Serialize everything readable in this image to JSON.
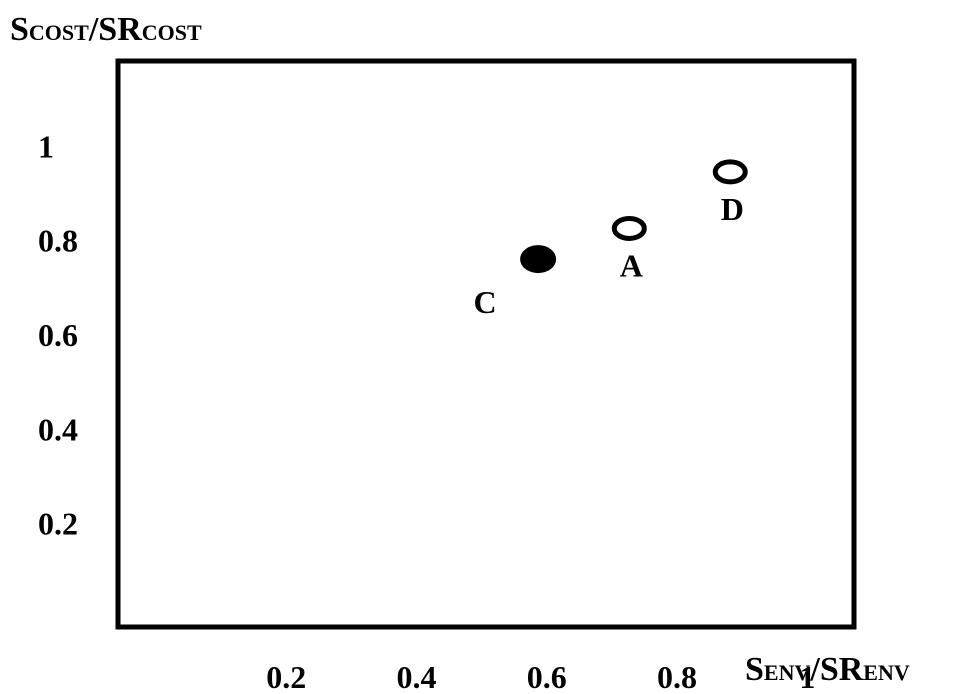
{
  "chart_data": {
    "type": "scatter",
    "title": "",
    "ylabel": {
      "main": "S",
      "sub": "COST",
      "sep": "/SR",
      "sub2": "COST"
    },
    "xlabel": {
      "main": "S",
      "sub": "ENV",
      "sep": "/SR",
      "sub2": "ENV"
    },
    "xlim": [
      0,
      1.13
    ],
    "ylim": [
      0,
      1.2
    ],
    "xticks": [
      0.2,
      0.4,
      0.6,
      0.8,
      1
    ],
    "xtick_labels": [
      "0.2",
      "0.4",
      "0.6",
      "0.8",
      "1"
    ],
    "yticks": [
      0.2,
      0.4,
      0.6,
      0.8,
      1
    ],
    "ytick_labels": [
      "0.2",
      "0.4",
      "0.6",
      "0.8",
      "1"
    ],
    "grid": false,
    "points": [
      {
        "label": "C",
        "x": 0.645,
        "y": 0.78,
        "filled": true,
        "label_pos": "below-left"
      },
      {
        "label": "A",
        "x": 0.785,
        "y": 0.845,
        "filled": false,
        "label_pos": "below"
      },
      {
        "label": "D",
        "x": 0.94,
        "y": 0.965,
        "filled": false,
        "label_pos": "below"
      }
    ]
  }
}
